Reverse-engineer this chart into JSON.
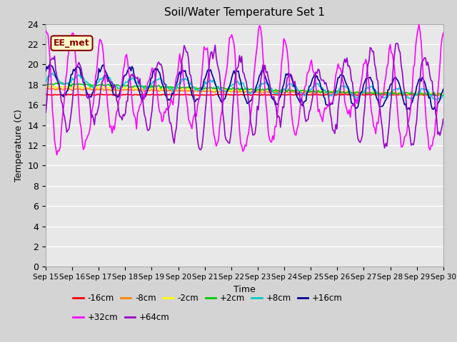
{
  "title": "Soil/Water Temperature Set 1",
  "xlabel": "Time",
  "ylabel": "Temperature (C)",
  "ylim": [
    0,
    24
  ],
  "xlim": [
    0,
    15
  ],
  "fig_bg": "#d4d4d4",
  "plot_bg": "#e8e8e8",
  "annotation_text": "EE_met",
  "annotation_bg": "#ffffcc",
  "annotation_border": "#8b0000",
  "series_order": [
    "-16cm",
    "-8cm",
    "-2cm",
    "+2cm",
    "+8cm",
    "+16cm",
    "+32cm",
    "+64cm"
  ],
  "series": {
    "-16cm": {
      "color": "#ff0000",
      "lw": 1.2
    },
    "-8cm": {
      "color": "#ff8800",
      "lw": 1.2
    },
    "-2cm": {
      "color": "#ffff00",
      "lw": 1.2
    },
    "+2cm": {
      "color": "#00cc00",
      "lw": 1.2
    },
    "+8cm": {
      "color": "#00cccc",
      "lw": 1.2
    },
    "+16cm": {
      "color": "#000099",
      "lw": 1.2
    },
    "+32cm": {
      "color": "#ff00ff",
      "lw": 1.2
    },
    "+64cm": {
      "color": "#9900cc",
      "lw": 1.2
    }
  },
  "legend_row1": [
    "-16cm",
    "-8cm",
    "-2cm",
    "+2cm",
    "+8cm",
    "+16cm"
  ],
  "legend_row2": [
    "+32cm",
    "+64cm"
  ],
  "legend_colors_row1": [
    "#ff0000",
    "#ff8800",
    "#ffff00",
    "#00cc00",
    "#00cccc",
    "#000099"
  ],
  "legend_colors_row2": [
    "#ff00ff",
    "#9900cc"
  ],
  "tick_labels": [
    "Sep 15",
    "Sep 16",
    "Sep 17",
    "Sep 18",
    "Sep 19",
    "Sep 20",
    "Sep 21",
    "Sep 22",
    "Sep 23",
    "Sep 24",
    "Sep 25",
    "Sep 26",
    "Sep 27",
    "Sep 28",
    "Sep 29",
    "Sep 30"
  ],
  "yticks": [
    0,
    2,
    4,
    6,
    8,
    10,
    12,
    14,
    16,
    18,
    20,
    22,
    24
  ]
}
